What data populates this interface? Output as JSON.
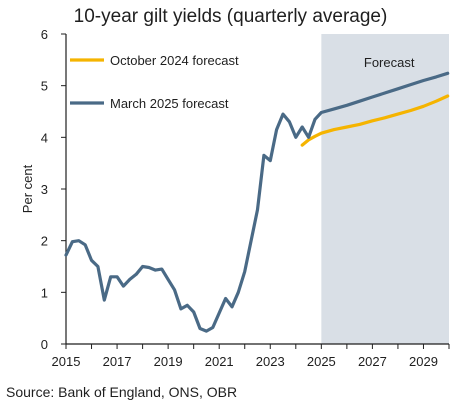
{
  "chart_data": {
    "type": "line",
    "title": "10-year gilt yields (quarterly average)",
    "ylabel": "Per cent",
    "xlabel": "",
    "xlim": [
      2015,
      2030
    ],
    "ylim": [
      0,
      6
    ],
    "yticks": [
      0,
      1,
      2,
      3,
      4,
      5,
      6
    ],
    "xticks": [
      2015,
      2017,
      2019,
      2021,
      2023,
      2025,
      2027,
      2029
    ],
    "forecast_region": {
      "label": "Forecast",
      "start": 2025,
      "end": 2030,
      "color": "#d9dfe6"
    },
    "series": [
      {
        "name": "October 2024 forecast",
        "color": "#f5b400",
        "points": [
          [
            2024.25,
            3.85
          ],
          [
            2024.5,
            3.95
          ],
          [
            2024.75,
            4.02
          ],
          [
            2025,
            4.08
          ],
          [
            2025.5,
            4.15
          ],
          [
            2026,
            4.2
          ],
          [
            2026.5,
            4.25
          ],
          [
            2027,
            4.32
          ],
          [
            2027.5,
            4.38
          ],
          [
            2028,
            4.45
          ],
          [
            2028.5,
            4.52
          ],
          [
            2029,
            4.6
          ],
          [
            2029.5,
            4.7
          ],
          [
            2029.95,
            4.8
          ]
        ]
      },
      {
        "name": "March 2025 forecast",
        "color": "#4a6a86",
        "points": [
          [
            2015,
            1.72
          ],
          [
            2015.25,
            1.98
          ],
          [
            2015.5,
            2.0
          ],
          [
            2015.75,
            1.92
          ],
          [
            2016,
            1.62
          ],
          [
            2016.25,
            1.5
          ],
          [
            2016.5,
            0.85
          ],
          [
            2016.75,
            1.3
          ],
          [
            2017,
            1.3
          ],
          [
            2017.25,
            1.12
          ],
          [
            2017.5,
            1.25
          ],
          [
            2017.75,
            1.35
          ],
          [
            2018,
            1.5
          ],
          [
            2018.25,
            1.48
          ],
          [
            2018.5,
            1.43
          ],
          [
            2018.75,
            1.45
          ],
          [
            2019,
            1.25
          ],
          [
            2019.25,
            1.05
          ],
          [
            2019.5,
            0.68
          ],
          [
            2019.75,
            0.75
          ],
          [
            2020,
            0.62
          ],
          [
            2020.25,
            0.3
          ],
          [
            2020.5,
            0.25
          ],
          [
            2020.75,
            0.32
          ],
          [
            2021,
            0.6
          ],
          [
            2021.25,
            0.88
          ],
          [
            2021.5,
            0.72
          ],
          [
            2021.75,
            1.0
          ],
          [
            2022,
            1.4
          ],
          [
            2022.25,
            2.0
          ],
          [
            2022.5,
            2.6
          ],
          [
            2022.75,
            3.65
          ],
          [
            2023,
            3.55
          ],
          [
            2023.25,
            4.15
          ],
          [
            2023.5,
            4.45
          ],
          [
            2023.75,
            4.3
          ],
          [
            2024,
            4.0
          ],
          [
            2024.25,
            4.2
          ],
          [
            2024.5,
            4.0
          ],
          [
            2024.75,
            4.35
          ],
          [
            2025,
            4.48
          ],
          [
            2025.5,
            4.55
          ],
          [
            2026,
            4.62
          ],
          [
            2026.5,
            4.7
          ],
          [
            2027,
            4.78
          ],
          [
            2027.5,
            4.86
          ],
          [
            2028,
            4.94
          ],
          [
            2028.5,
            5.02
          ],
          [
            2029,
            5.1
          ],
          [
            2029.5,
            5.17
          ],
          [
            2029.95,
            5.24
          ]
        ]
      }
    ],
    "legend_position": "top-left"
  },
  "source": "Source: Bank of England, ONS, OBR",
  "colors": {
    "axis": "#1f1f1f",
    "text": "#1f1f1f",
    "background": "#ffffff"
  }
}
